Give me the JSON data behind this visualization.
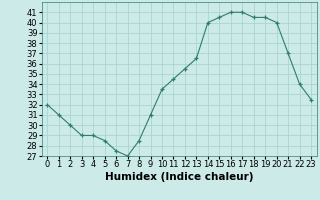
{
  "x": [
    0,
    1,
    2,
    3,
    4,
    5,
    6,
    7,
    8,
    9,
    10,
    11,
    12,
    13,
    14,
    15,
    16,
    17,
    18,
    19,
    20,
    21,
    22,
    23
  ],
  "y": [
    32,
    31,
    30,
    29,
    29,
    28.5,
    27.5,
    27,
    28.5,
    31,
    33.5,
    34.5,
    35.5,
    36.5,
    40,
    40.5,
    41,
    41,
    40.5,
    40.5,
    40,
    37,
    34,
    32.5
  ],
  "line_color": "#2e7d6e",
  "marker": "+",
  "marker_color": "#2e7d6e",
  "bg_color": "#cceae8",
  "grid_color": "#aad4d0",
  "xlabel": "Humidex (Indice chaleur)",
  "ylim": [
    27,
    42
  ],
  "xlim": [
    -0.5,
    23.5
  ],
  "yticks": [
    27,
    28,
    29,
    30,
    31,
    32,
    33,
    34,
    35,
    36,
    37,
    38,
    39,
    40,
    41
  ],
  "xticks": [
    0,
    1,
    2,
    3,
    4,
    5,
    6,
    7,
    8,
    9,
    10,
    11,
    12,
    13,
    14,
    15,
    16,
    17,
    18,
    19,
    20,
    21,
    22,
    23
  ],
  "tick_label_fontsize": 6,
  "xlabel_fontsize": 7.5
}
